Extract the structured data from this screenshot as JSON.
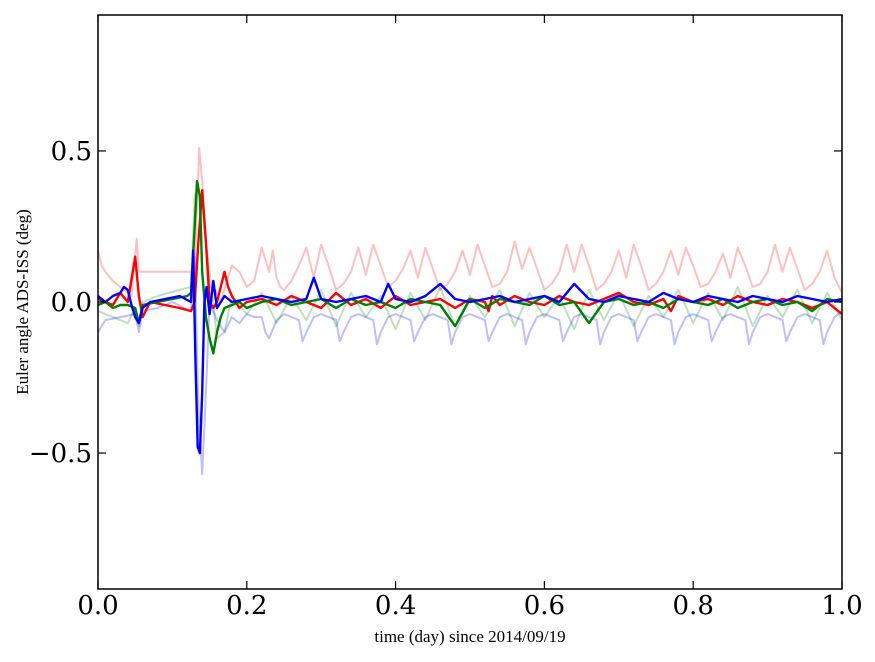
{
  "chart_data": {
    "type": "line",
    "title": "",
    "xlabel": "time (day) since 2014/09/19",
    "ylabel": "Euler angle ADS-ISS (deg)",
    "xlim": [
      0.0,
      1.0
    ],
    "ylim": [
      -0.95,
      0.95
    ],
    "grid": false,
    "legend": "none",
    "xticks": [
      {
        "value": 0.0,
        "label": "0.0"
      },
      {
        "value": 0.2,
        "label": "0.2"
      },
      {
        "value": 0.4,
        "label": "0.4"
      },
      {
        "value": 0.6,
        "label": "0.6"
      },
      {
        "value": 0.8,
        "label": "0.8"
      },
      {
        "value": 1.0,
        "label": "1.0"
      }
    ],
    "yticks": [
      {
        "value": -0.5,
        "label": "−0.5"
      },
      {
        "value": 0.0,
        "label": "0.0"
      },
      {
        "value": 0.5,
        "label": "0.5"
      }
    ],
    "series": [
      {
        "color": "#ff0000",
        "opacity": 0.25,
        "x": [
          0,
          0.005,
          0.01,
          0.02,
          0.03,
          0.045,
          0.052,
          0.055,
          0.06,
          0.065,
          0.09,
          0.12,
          0.125,
          0.128,
          0.132,
          0.136,
          0.14,
          0.145,
          0.15,
          0.158,
          0.165,
          0.172,
          0.18,
          0.19,
          0.2,
          0.21,
          0.22,
          0.23,
          0.235,
          0.24,
          0.245,
          0.25,
          0.26,
          0.27,
          0.28,
          0.29,
          0.3,
          0.31,
          0.32,
          0.33,
          0.34,
          0.35,
          0.36,
          0.37,
          0.38,
          0.39,
          0.4,
          0.41,
          0.42,
          0.43,
          0.44,
          0.45,
          0.46,
          0.47,
          0.48,
          0.49,
          0.5,
          0.51,
          0.52,
          0.53,
          0.54,
          0.55,
          0.56,
          0.57,
          0.58,
          0.59,
          0.6,
          0.61,
          0.62,
          0.63,
          0.64,
          0.65,
          0.66,
          0.67,
          0.68,
          0.69,
          0.7,
          0.71,
          0.72,
          0.73,
          0.74,
          0.75,
          0.76,
          0.77,
          0.78,
          0.79,
          0.8,
          0.81,
          0.82,
          0.83,
          0.84,
          0.85,
          0.86,
          0.87,
          0.88,
          0.89,
          0.9,
          0.91,
          0.92,
          0.93,
          0.94,
          0.95,
          0.96,
          0.97,
          0.98,
          0.99,
          1.0
        ],
        "y": [
          0.17,
          0.12,
          0.1,
          0.07,
          0.05,
          0.02,
          0.21,
          0.1,
          0.1,
          0.1,
          0.1,
          0.1,
          0.1,
          0.0,
          0.25,
          0.51,
          0.4,
          0.2,
          0.05,
          0.04,
          0.0,
          0.06,
          0.12,
          0.1,
          0.05,
          0.07,
          0.18,
          0.1,
          0.17,
          0.08,
          0.05,
          0.04,
          0.07,
          0.12,
          0.18,
          0.08,
          0.19,
          0.12,
          0.04,
          0.06,
          0.1,
          0.18,
          0.09,
          0.19,
          0.12,
          0.05,
          0.07,
          0.11,
          0.17,
          0.08,
          0.18,
          0.11,
          0.04,
          0.06,
          0.1,
          0.17,
          0.09,
          0.19,
          0.12,
          0.05,
          0.06,
          0.1,
          0.2,
          0.11,
          0.18,
          0.11,
          0.04,
          0.06,
          0.1,
          0.19,
          0.1,
          0.19,
          0.12,
          0.04,
          0.06,
          0.1,
          0.17,
          0.08,
          0.19,
          0.12,
          0.04,
          0.06,
          0.1,
          0.17,
          0.09,
          0.18,
          0.12,
          0.05,
          0.06,
          0.1,
          0.16,
          0.08,
          0.18,
          0.12,
          0.05,
          0.06,
          0.1,
          0.19,
          0.1,
          0.18,
          0.11,
          0.04,
          0.06,
          0.1,
          0.17,
          0.08,
          0.03
        ]
      },
      {
        "color": "#008000",
        "opacity": 0.25,
        "x": [
          0,
          0.02,
          0.04,
          0.05,
          0.055,
          0.06,
          0.08,
          0.11,
          0.125,
          0.13,
          0.135,
          0.14,
          0.15,
          0.16,
          0.17,
          0.18,
          0.2,
          0.22,
          0.24,
          0.26,
          0.28,
          0.3,
          0.32,
          0.34,
          0.36,
          0.38,
          0.4,
          0.42,
          0.44,
          0.46,
          0.48,
          0.5,
          0.52,
          0.54,
          0.56,
          0.58,
          0.6,
          0.62,
          0.64,
          0.66,
          0.68,
          0.7,
          0.72,
          0.74,
          0.76,
          0.78,
          0.8,
          0.82,
          0.84,
          0.86,
          0.88,
          0.9,
          0.92,
          0.94,
          0.96,
          0.98,
          1.0
        ],
        "y": [
          -0.03,
          -0.05,
          -0.07,
          -0.02,
          -0.08,
          0.0,
          0.02,
          0.04,
          0.05,
          0.35,
          0.38,
          0.3,
          0.1,
          -0.12,
          -0.1,
          0.02,
          -0.04,
          0.03,
          -0.07,
          0.02,
          -0.06,
          0.04,
          -0.08,
          0.03,
          -0.05,
          0.02,
          -0.09,
          0.03,
          -0.06,
          0.05,
          -0.08,
          0.02,
          -0.05,
          0.04,
          -0.08,
          0.03,
          -0.05,
          0.02,
          -0.09,
          0.04,
          -0.06,
          0.03,
          -0.08,
          0.02,
          -0.05,
          0.04,
          -0.07,
          0.03,
          -0.06,
          0.05,
          -0.08,
          0.02,
          -0.05,
          0.04,
          -0.07,
          0.03,
          -0.06
        ]
      },
      {
        "color": "#0000ff",
        "opacity": 0.25,
        "x": [
          0,
          0.01,
          0.03,
          0.05,
          0.055,
          0.06,
          0.08,
          0.1,
          0.125,
          0.13,
          0.135,
          0.14,
          0.145,
          0.15,
          0.16,
          0.17,
          0.18,
          0.19,
          0.2,
          0.21,
          0.22,
          0.225,
          0.23,
          0.24,
          0.25,
          0.26,
          0.27,
          0.275,
          0.28,
          0.29,
          0.3,
          0.31,
          0.32,
          0.325,
          0.33,
          0.34,
          0.35,
          0.36,
          0.37,
          0.375,
          0.38,
          0.39,
          0.4,
          0.41,
          0.42,
          0.425,
          0.43,
          0.44,
          0.45,
          0.46,
          0.47,
          0.475,
          0.48,
          0.49,
          0.5,
          0.51,
          0.52,
          0.525,
          0.53,
          0.54,
          0.55,
          0.56,
          0.57,
          0.575,
          0.58,
          0.59,
          0.6,
          0.61,
          0.62,
          0.625,
          0.63,
          0.64,
          0.65,
          0.66,
          0.67,
          0.675,
          0.68,
          0.69,
          0.7,
          0.71,
          0.72,
          0.725,
          0.73,
          0.74,
          0.75,
          0.76,
          0.77,
          0.775,
          0.78,
          0.79,
          0.8,
          0.81,
          0.82,
          0.825,
          0.83,
          0.84,
          0.85,
          0.86,
          0.87,
          0.875,
          0.88,
          0.89,
          0.9,
          0.91,
          0.92,
          0.925,
          0.93,
          0.94,
          0.95,
          0.96,
          0.97,
          0.975,
          0.98,
          0.99,
          1.0
        ],
        "y": [
          -0.1,
          -0.06,
          -0.05,
          -0.04,
          -0.1,
          -0.03,
          -0.02,
          0.0,
          -0.03,
          0.15,
          -0.35,
          -0.57,
          -0.3,
          0.0,
          -0.06,
          -0.1,
          -0.05,
          -0.07,
          -0.04,
          -0.05,
          -0.05,
          -0.1,
          -0.12,
          -0.06,
          -0.04,
          -0.05,
          -0.06,
          -0.13,
          -0.1,
          -0.05,
          -0.04,
          -0.05,
          -0.06,
          -0.13,
          -0.1,
          -0.05,
          -0.04,
          -0.05,
          -0.06,
          -0.14,
          -0.1,
          -0.05,
          -0.04,
          -0.05,
          -0.06,
          -0.13,
          -0.1,
          -0.05,
          -0.04,
          -0.05,
          -0.06,
          -0.14,
          -0.1,
          -0.05,
          -0.04,
          -0.05,
          -0.06,
          -0.13,
          -0.1,
          -0.05,
          -0.04,
          -0.05,
          -0.06,
          -0.14,
          -0.1,
          -0.05,
          -0.04,
          -0.05,
          -0.06,
          -0.13,
          -0.1,
          -0.05,
          -0.04,
          -0.05,
          -0.06,
          -0.14,
          -0.1,
          -0.05,
          -0.04,
          -0.05,
          -0.06,
          -0.13,
          -0.1,
          -0.05,
          -0.04,
          -0.05,
          -0.06,
          -0.14,
          -0.1,
          -0.05,
          -0.04,
          -0.05,
          -0.06,
          -0.13,
          -0.1,
          -0.05,
          -0.04,
          -0.05,
          -0.06,
          -0.14,
          -0.1,
          -0.05,
          -0.04,
          -0.05,
          -0.06,
          -0.13,
          -0.1,
          -0.05,
          -0.04,
          -0.05,
          -0.06,
          -0.14,
          -0.1,
          -0.05,
          -0.03
        ]
      },
      {
        "color": "#ff0000",
        "opacity": 1,
        "x": [
          0,
          0.01,
          0.02,
          0.03,
          0.04,
          0.05,
          0.055,
          0.06,
          0.07,
          0.09,
          0.11,
          0.125,
          0.13,
          0.135,
          0.14,
          0.145,
          0.15,
          0.155,
          0.16,
          0.17,
          0.175,
          0.18,
          0.19,
          0.2,
          0.22,
          0.24,
          0.26,
          0.28,
          0.3,
          0.32,
          0.34,
          0.36,
          0.38,
          0.4,
          0.42,
          0.44,
          0.46,
          0.48,
          0.5,
          0.52,
          0.525,
          0.53,
          0.54,
          0.56,
          0.58,
          0.6,
          0.62,
          0.64,
          0.66,
          0.68,
          0.7,
          0.72,
          0.74,
          0.76,
          0.77,
          0.78,
          0.8,
          0.82,
          0.84,
          0.86,
          0.88,
          0.9,
          0.92,
          0.94,
          0.96,
          0.98,
          1.0
        ],
        "y": [
          0.01,
          0.0,
          -0.01,
          0.03,
          0.0,
          0.15,
          0.02,
          -0.05,
          0.0,
          -0.01,
          -0.02,
          -0.03,
          0.0,
          0.2,
          0.37,
          0.2,
          0.0,
          -0.02,
          0.0,
          0.1,
          0.05,
          0.02,
          -0.02,
          0.0,
          0.01,
          -0.01,
          0.02,
          0.0,
          -0.02,
          0.03,
          -0.01,
          0.01,
          -0.02,
          0.02,
          -0.01,
          0.0,
          0.01,
          -0.02,
          0.01,
          0.0,
          -0.03,
          0.02,
          -0.01,
          0.02,
          0.0,
          -0.01,
          0.02,
          0.0,
          -0.01,
          0.01,
          0.03,
          0.0,
          -0.01,
          0.01,
          -0.03,
          0.02,
          0.0,
          0.01,
          -0.01,
          0.02,
          0.0,
          -0.01,
          0.01,
          0.0,
          -0.02,
          0.0,
          -0.04
        ]
      },
      {
        "color": "#008000",
        "opacity": 1,
        "x": [
          0,
          0.01,
          0.02,
          0.03,
          0.04,
          0.05,
          0.055,
          0.06,
          0.08,
          0.1,
          0.12,
          0.125,
          0.13,
          0.133,
          0.137,
          0.14,
          0.145,
          0.15,
          0.155,
          0.16,
          0.165,
          0.17,
          0.18,
          0.19,
          0.2,
          0.22,
          0.24,
          0.26,
          0.28,
          0.3,
          0.32,
          0.34,
          0.36,
          0.38,
          0.4,
          0.42,
          0.44,
          0.46,
          0.48,
          0.5,
          0.52,
          0.54,
          0.56,
          0.58,
          0.6,
          0.62,
          0.64,
          0.66,
          0.68,
          0.7,
          0.72,
          0.74,
          0.76,
          0.78,
          0.8,
          0.82,
          0.84,
          0.86,
          0.88,
          0.9,
          0.92,
          0.94,
          0.96,
          0.98,
          1.0
        ],
        "y": [
          -0.01,
          0.0,
          -0.02,
          -0.01,
          -0.01,
          -0.02,
          -0.07,
          -0.01,
          0.0,
          0.01,
          0.02,
          0.03,
          0.25,
          0.4,
          0.35,
          0.1,
          -0.05,
          -0.12,
          -0.17,
          -0.1,
          -0.05,
          -0.02,
          -0.01,
          0.0,
          -0.02,
          0.0,
          0.01,
          -0.01,
          0.0,
          0.01,
          -0.02,
          0.01,
          -0.01,
          0.0,
          -0.02,
          0.01,
          0.0,
          -0.01,
          -0.08,
          0.01,
          -0.02,
          0.01,
          0.0,
          -0.01,
          0.02,
          -0.01,
          0.0,
          -0.07,
          0.0,
          0.01,
          -0.01,
          0.0,
          -0.02,
          0.01,
          0.0,
          -0.01,
          0.01,
          -0.02,
          0.0,
          0.01,
          -0.01,
          0.0,
          -0.03,
          0.01,
          0.0
        ]
      },
      {
        "color": "#0000ff",
        "opacity": 1,
        "x": [
          0,
          0.01,
          0.02,
          0.03,
          0.035,
          0.04,
          0.045,
          0.05,
          0.055,
          0.06,
          0.07,
          0.09,
          0.11,
          0.125,
          0.128,
          0.131,
          0.134,
          0.137,
          0.14,
          0.143,
          0.146,
          0.15,
          0.155,
          0.16,
          0.165,
          0.17,
          0.18,
          0.2,
          0.22,
          0.24,
          0.26,
          0.28,
          0.29,
          0.3,
          0.32,
          0.34,
          0.36,
          0.38,
          0.39,
          0.4,
          0.42,
          0.44,
          0.46,
          0.48,
          0.5,
          0.52,
          0.54,
          0.56,
          0.58,
          0.6,
          0.62,
          0.64,
          0.66,
          0.68,
          0.7,
          0.72,
          0.74,
          0.76,
          0.78,
          0.8,
          0.82,
          0.84,
          0.86,
          0.88,
          0.9,
          0.92,
          0.94,
          0.96,
          0.98,
          1.0
        ],
        "y": [
          0.02,
          0.0,
          0.02,
          0.03,
          0.05,
          0.04,
          -0.01,
          -0.05,
          -0.07,
          -0.02,
          0.0,
          0.01,
          0.02,
          0.0,
          0.17,
          -0.2,
          -0.48,
          -0.5,
          -0.3,
          0.0,
          0.05,
          -0.04,
          0.07,
          -0.02,
          0.0,
          0.02,
          0.0,
          0.01,
          0.02,
          0.01,
          0.0,
          0.01,
          0.08,
          0.01,
          0.0,
          0.01,
          0.02,
          0.0,
          0.06,
          0.01,
          0.0,
          0.02,
          0.06,
          0.01,
          0.0,
          0.01,
          0.02,
          0.0,
          0.01,
          0.02,
          0.0,
          0.06,
          0.01,
          0.0,
          0.02,
          0.01,
          0.0,
          0.03,
          0.01,
          0.0,
          0.02,
          0.01,
          0.0,
          0.02,
          0.01,
          0.0,
          0.02,
          0.01,
          0.0,
          0.01
        ]
      }
    ]
  }
}
